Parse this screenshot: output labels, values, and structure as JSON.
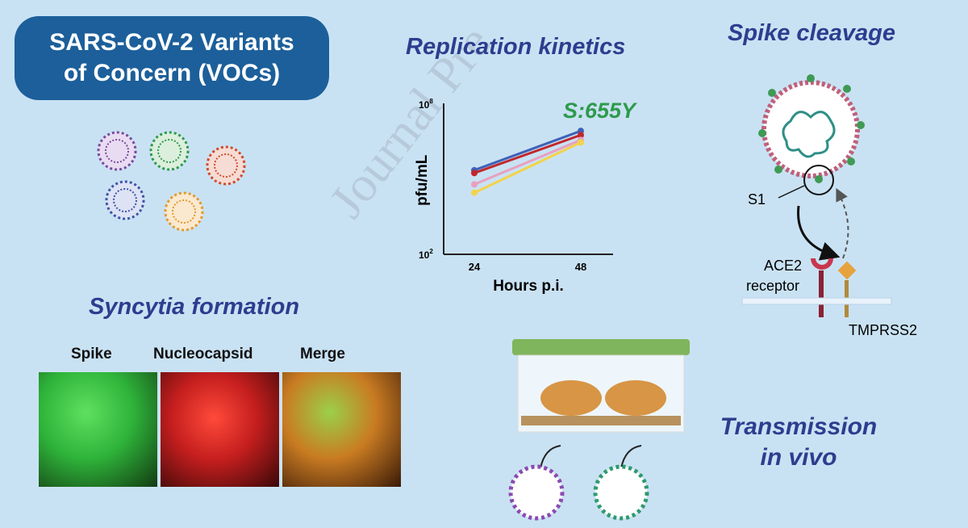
{
  "title": {
    "line1": "SARS-CoV-2 Variants",
    "line2": "of Concern (VOCs)"
  },
  "watermark": "Journal Pre",
  "replication": {
    "heading": "Replication kinetics",
    "variant_label": "S:655Y",
    "variant_color": "#2e9a4c"
  },
  "chart_data": {
    "type": "line",
    "x": [
      24,
      48
    ],
    "xlabel": "Hours p.i.",
    "ylabel": "pfu/mL",
    "yscale": "log",
    "ylim": [
      100,
      100000000
    ],
    "y_ticks": [
      "10^2",
      "10^8"
    ],
    "x_ticks": [
      "24",
      "48"
    ],
    "series": [
      {
        "color": "#3e62b8",
        "values": [
          220000,
          8000000
        ]
      },
      {
        "color": "#c1272d",
        "values": [
          170000,
          5500000
        ]
      },
      {
        "color": "#e8a0c0",
        "values": [
          60000,
          3500000
        ]
      },
      {
        "color": "#f2d34a",
        "values": [
          28000,
          2800000
        ]
      }
    ],
    "annotation": "S:655Y"
  },
  "spike": {
    "heading": "Spike cleavage",
    "s1": "S1",
    "ace2_line1": "ACE2",
    "ace2_line2": "receptor",
    "tmprss2": "TMPRSS2"
  },
  "syncytia": {
    "heading": "Syncytia formation",
    "panels": [
      "Spike",
      "Nucleocapsid",
      "Merge"
    ]
  },
  "transmission": {
    "line1": "Transmission",
    "line2": "in vivo"
  },
  "colors": {
    "background": "#c9e2f3",
    "title_box": "#1c5f9a",
    "heading": "#2d3d8f"
  }
}
